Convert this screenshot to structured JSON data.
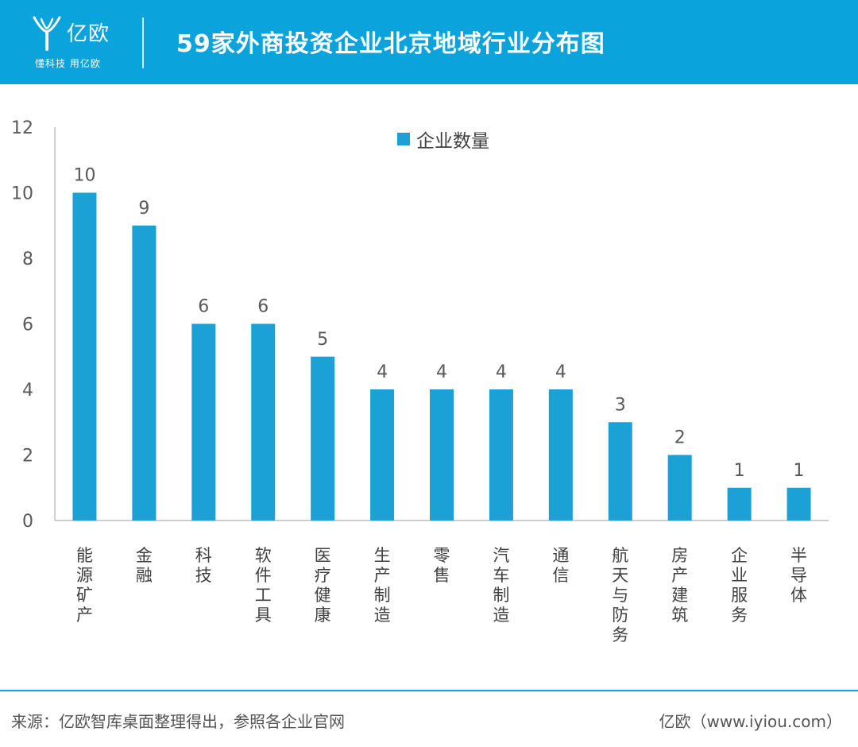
{
  "header": {
    "brand_name": "亿欧",
    "brand_slogan": "懂科技 用亿欧",
    "title": "59家外商投资企业北京地域行业分布图"
  },
  "chart_data": {
    "type": "bar",
    "title": "59家外商投资企业北京地域行业分布图",
    "categories": [
      "能源矿产",
      "金融",
      "科技",
      "软件工具",
      "医疗健康",
      "生产制造",
      "零售",
      "汽车制造",
      "通信",
      "航天与防务",
      "房产建筑",
      "企业服务",
      "半导体"
    ],
    "series": [
      {
        "name": "企业数量",
        "values": [
          10,
          9,
          6,
          6,
          5,
          4,
          4,
          4,
          4,
          3,
          2,
          1,
          1
        ]
      }
    ],
    "ylim": [
      0,
      12
    ],
    "yticks": [
      "0",
      "2",
      "4",
      "6",
      "8",
      "10",
      "12"
    ],
    "legend_position": "top",
    "grid": false,
    "bar_color": "#1ba1d6",
    "axis_color": "#bfbfbf"
  },
  "footer": {
    "source": "来源：亿欧智库桌面整理得出，参照各企业官网",
    "site": "亿欧（www.iyiou.com）"
  },
  "colors": {
    "brand": "#0aa3dc",
    "bar": "#1ba1d6"
  }
}
